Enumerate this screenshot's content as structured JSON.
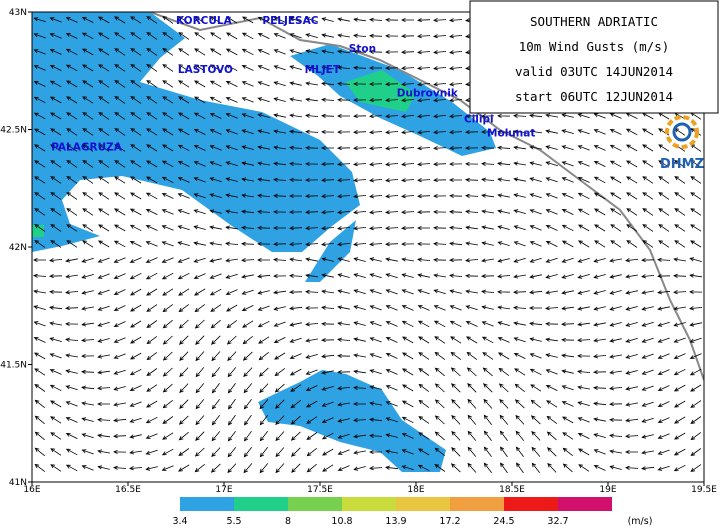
{
  "map": {
    "lonlim": [
      16,
      19.5
    ],
    "latlim": [
      41,
      43
    ],
    "lon_ticks": [
      {
        "value": 16,
        "label": "16E"
      },
      {
        "value": 16.5,
        "label": "16.5E"
      },
      {
        "value": 17,
        "label": "17E"
      },
      {
        "value": 17.5,
        "label": "17.5E"
      },
      {
        "value": 18,
        "label": "18E"
      },
      {
        "value": 18.5,
        "label": "18.5E"
      },
      {
        "value": 19,
        "label": "19E"
      },
      {
        "value": 19.5,
        "label": "19.5E"
      }
    ],
    "lat_ticks": [
      {
        "value": 41,
        "label": "41N"
      },
      {
        "value": 41.5,
        "label": "41.5N"
      },
      {
        "value": 42,
        "label": "42N"
      },
      {
        "value": 42.5,
        "label": "42.5N"
      },
      {
        "value": 43,
        "label": "43N"
      }
    ],
    "places": [
      {
        "name": "KORCULA",
        "lon": 16.75,
        "lat": 42.95
      },
      {
        "name": "PELJESAC",
        "lon": 17.2,
        "lat": 42.95
      },
      {
        "name": "Ston",
        "lon": 17.65,
        "lat": 42.83
      },
      {
        "name": "LASTOVO",
        "lon": 16.76,
        "lat": 42.74
      },
      {
        "name": "MLJET",
        "lon": 17.42,
        "lat": 42.74
      },
      {
        "name": "Dubrovnik",
        "lon": 17.9,
        "lat": 42.64
      },
      {
        "name": "Cilipi",
        "lon": 18.25,
        "lat": 42.53
      },
      {
        "name": "Molunat",
        "lon": 18.37,
        "lat": 42.47
      },
      {
        "name": "PALAGRUZA",
        "lon": 16.1,
        "lat": 42.41
      }
    ]
  },
  "title_box": {
    "lines": [
      "SOUTHERN ADRIATIC",
      "10m Wind Gusts (m/s)",
      "valid 03UTC 14JUN2014",
      "start 06UTC 12JUN2014"
    ]
  },
  "logo": "DHMZ",
  "colorbar": {
    "levels": [
      3.4,
      5.5,
      8,
      10.8,
      13.9,
      17.2,
      24.5,
      32.7
    ],
    "unit": "(m/s)",
    "colors": [
      "#2fa2e4",
      "#20d08a",
      "#78d050",
      "#c8dc3c",
      "#e8c640",
      "#f0a040",
      "#ee1a1a",
      "#d0106a"
    ]
  }
}
